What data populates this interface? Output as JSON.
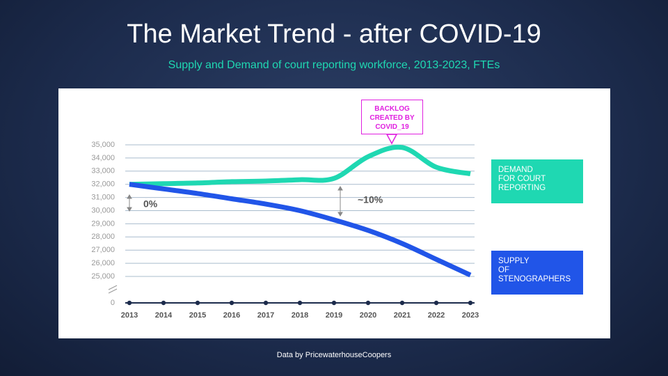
{
  "chart_data": {
    "type": "line",
    "title": "The Market Trend - after COVID-19",
    "subtitle": "Supply and Demand of court reporting workforce, 2013-2023, FTEs",
    "categories": [
      "2013",
      "2014",
      "2015",
      "2016",
      "2017",
      "2018",
      "2019",
      "2020",
      "2021",
      "2022",
      "2023"
    ],
    "series": [
      {
        "name": "DEMAND\nFOR COURT\nREPORTING",
        "color": "#1fd8b2",
        "values": [
          32000,
          32050,
          32100,
          32200,
          32250,
          32350,
          32450,
          34100,
          34800,
          33300,
          32800
        ]
      },
      {
        "name": "SUPPLY\nOF\nSTENOGRAPHERS",
        "color": "#2155e8",
        "values": [
          32000,
          31650,
          31300,
          30900,
          30500,
          30000,
          29300,
          28500,
          27500,
          26300,
          25100
        ]
      }
    ],
    "ylim": [
      0,
      35000
    ],
    "yticks": [
      0,
      {
        "value": 25000,
        "label": "25,000"
      },
      {
        "value": 26000,
        "label": "26,000"
      },
      {
        "value": 27000,
        "label": "27,000"
      },
      {
        "value": 28000,
        "label": "28,000"
      },
      {
        "value": 29000,
        "label": "29,000"
      },
      {
        "value": 30000,
        "label": "30,000"
      },
      {
        "value": 31000,
        "label": "31,000"
      },
      {
        "value": 32000,
        "label": "32,000"
      },
      {
        "value": 33000,
        "label": "33,000"
      },
      {
        "value": 34000,
        "label": "34,000"
      },
      {
        "value": 35000,
        "label": "35,000"
      }
    ],
    "axis_break": true,
    "grid": true,
    "callout": "BACKLOG\nCREATED BY\nCOVID_19",
    "annotations": [
      "0%",
      "~10%"
    ],
    "source": "Data by PricewaterhouseCoopers"
  }
}
